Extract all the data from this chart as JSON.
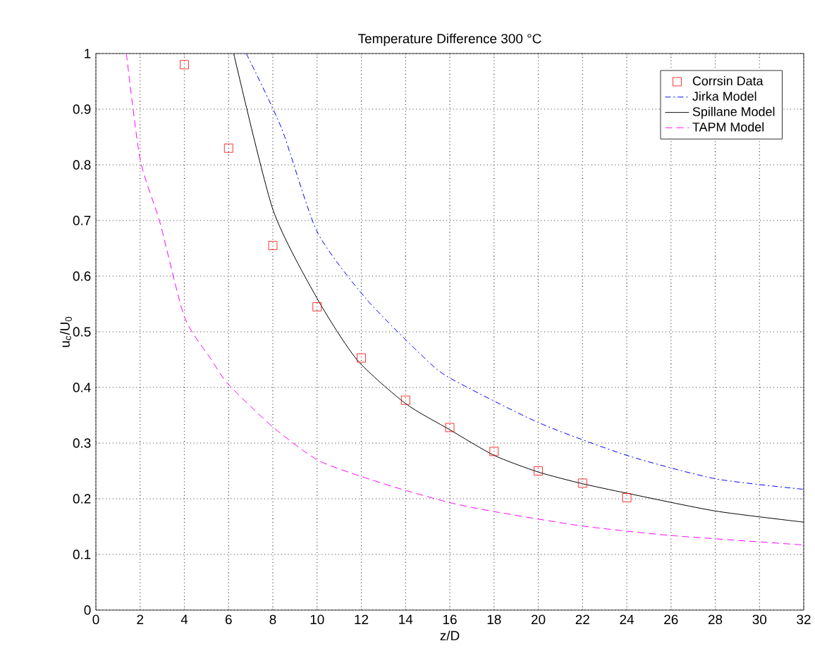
{
  "chart_data": {
    "type": "line",
    "title": "Temperature Difference 300 °C",
    "xlabel": "z/D",
    "ylabel": "u$_{c}$/U$_{0}$",
    "xlim": [
      0,
      32
    ],
    "ylim": [
      0,
      1
    ],
    "xticks": [
      0,
      2,
      4,
      6,
      8,
      10,
      12,
      14,
      16,
      18,
      20,
      22,
      24,
      26,
      28,
      30,
      32
    ],
    "yticks": [
      0,
      0.1,
      0.2,
      0.3,
      0.4,
      0.5,
      0.6,
      0.7,
      0.8,
      0.9,
      1
    ],
    "grid": true,
    "legend": "top right",
    "series": [
      {
        "name": "Corrsin Data",
        "type": "scatter",
        "marker": "square",
        "color": "#ff0000",
        "x": [
          4,
          6,
          8,
          10,
          12,
          14,
          16,
          18,
          20,
          22,
          24
        ],
        "values": [
          0.98,
          0.83,
          0.655,
          0.545,
          0.453,
          0.377,
          0.328,
          0.285,
          0.25,
          0.228,
          0.202
        ]
      },
      {
        "name": "Jirka Model",
        "type": "line",
        "line_style": "dashdot",
        "color": "#0000ff",
        "x": [
          6.8,
          8.4,
          10,
          12.2,
          14.8,
          16,
          20,
          24,
          28,
          32
        ],
        "values": [
          1,
          0.865,
          0.68,
          0.56,
          0.455,
          0.417,
          0.337,
          0.278,
          0.236,
          0.217
        ]
      },
      {
        "name": "Spillane Model",
        "type": "line",
        "line_style": "solid",
        "color": "#000000",
        "x": [
          6.23,
          8,
          10,
          11.8,
          14,
          16,
          18,
          20,
          22,
          24,
          28,
          32
        ],
        "values": [
          1,
          0.72,
          0.56,
          0.45,
          0.371,
          0.324,
          0.278,
          0.248,
          0.227,
          0.21,
          0.178,
          0.158
        ]
      },
      {
        "name": "TAPM Model",
        "type": "line",
        "line_style": "dashed",
        "color": "#ff00ff",
        "x": [
          1.38,
          2,
          2.9,
          4,
          5.2,
          6,
          8,
          10,
          12,
          14,
          16,
          18,
          22,
          26,
          32
        ],
        "values": [
          1,
          0.81,
          0.696,
          0.527,
          0.451,
          0.405,
          0.329,
          0.27,
          0.24,
          0.215,
          0.193,
          0.177,
          0.151,
          0.134,
          0.117
        ]
      }
    ]
  }
}
